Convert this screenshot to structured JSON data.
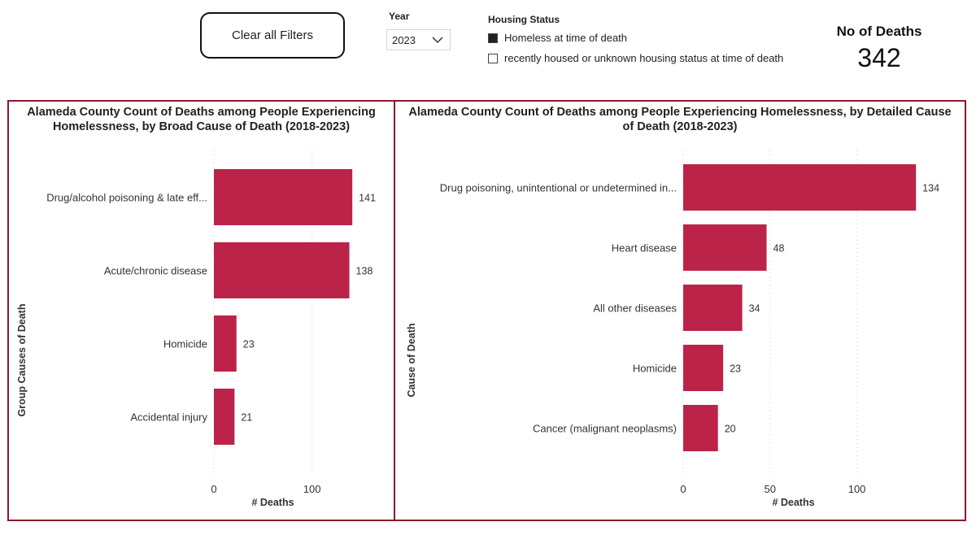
{
  "filters": {
    "clear_label": "Clear all Filters",
    "year_label": "Year",
    "year_value": "2023",
    "housing_label": "Housing Status",
    "housing_options": [
      {
        "label": "Homeless at time of death",
        "checked": true
      },
      {
        "label": "recently housed or unknown housing status at time of death",
        "checked": false
      }
    ]
  },
  "kpi": {
    "title": "No of Deaths",
    "value": "342"
  },
  "accent_color": "#bc2348",
  "border_color": "#8b1a2e",
  "chart_data": [
    {
      "type": "bar",
      "orientation": "horizontal",
      "title": "Alameda County Count of Deaths among People Experiencing Homelessness, by Broad Cause of Death (2018-2023)",
      "xlabel": "# Deaths",
      "ylabel": "Group Causes of Death",
      "categories": [
        "Drug/alcohol poisoning & late eff...",
        "Acute/chronic disease",
        "Homicide",
        "Accidental injury"
      ],
      "values": [
        141,
        138,
        23,
        21
      ],
      "xticks": [
        0,
        100
      ],
      "xlim": [
        0,
        145
      ],
      "grid": true
    },
    {
      "type": "bar",
      "orientation": "horizontal",
      "title": "Alameda County Count of Deaths among People Experiencing Homelessness, by Detailed Cause of Death (2018-2023)",
      "xlabel": "# Deaths",
      "ylabel": "Cause of Death",
      "categories": [
        "Drug poisoning, unintentional or undetermined in...",
        "Heart disease",
        "All other diseases",
        "Homicide",
        "Cancer (malignant neoplasms)"
      ],
      "values": [
        134,
        48,
        34,
        23,
        20
      ],
      "xticks": [
        0,
        50,
        100
      ],
      "xlim": [
        0,
        140
      ],
      "grid": true
    }
  ]
}
